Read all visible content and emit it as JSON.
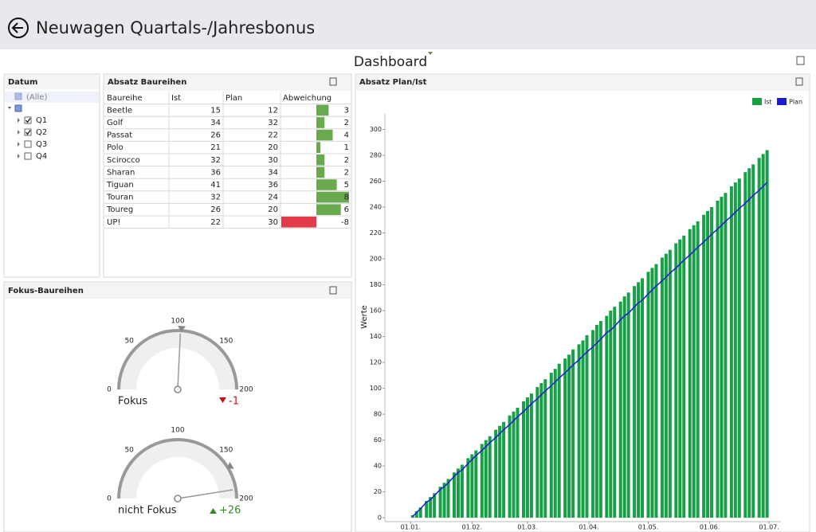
{
  "header": {
    "title": "Neuwagen Quartals-/Jahresbonus"
  },
  "dashboard_title": "Dashboard",
  "datum": {
    "title": "Datum",
    "all": "(Alle)",
    "items": [
      {
        "label": "Q1",
        "checked": true
      },
      {
        "label": "Q2",
        "checked": true
      },
      {
        "label": "Q3",
        "checked": false
      },
      {
        "label": "Q4",
        "checked": false
      }
    ]
  },
  "table": {
    "title": "Absatz Baureihen",
    "header": [
      "Baureihe",
      "Ist",
      "Plan",
      "Abweichung"
    ],
    "rows": [
      [
        "Beetle",
        15,
        12,
        3
      ],
      [
        "Golf",
        34,
        32,
        2
      ],
      [
        "Passat",
        26,
        22,
        4
      ],
      [
        "Polo",
        21,
        20,
        1
      ],
      [
        "Scirocco",
        32,
        30,
        2
      ],
      [
        "Sharan",
        36,
        34,
        2
      ],
      [
        "Tiguan",
        41,
        36,
        5
      ],
      [
        "Touran",
        32,
        24,
        8
      ],
      [
        "Toureg",
        26,
        20,
        6
      ],
      [
        "UP!",
        22,
        30,
        -8
      ]
    ],
    "positive_color": "#6aaa4f",
    "negative_color": "#e23c4b"
  },
  "gauges": {
    "title": "Fokus-Baureihen",
    "scale": {
      "min": 0,
      "max": 200,
      "ticks": [
        0,
        50,
        100,
        150,
        200
      ]
    },
    "items": [
      {
        "label": "Fokus",
        "value": 103,
        "target": 104,
        "delta": "-1"
      },
      {
        "label": "nicht Fokus",
        "value": 190,
        "target": 165,
        "delta": "+26"
      }
    ]
  },
  "chart_data": {
    "type": "bar-line",
    "title": "Absatz Plan/Ist",
    "ylabel": "Werte",
    "x": [
      1,
      3,
      5,
      8,
      10,
      12,
      15,
      17,
      19,
      22,
      24,
      26,
      29,
      31,
      33,
      36,
      38,
      40,
      43,
      45,
      47,
      50,
      52,
      54,
      57,
      59,
      61,
      64,
      66,
      68,
      71,
      73,
      75,
      78,
      80,
      82,
      85,
      87,
      89,
      92,
      94,
      96,
      99,
      101,
      103,
      106,
      108,
      110,
      113,
      115,
      117,
      120,
      122,
      124,
      127,
      129,
      131,
      134,
      136,
      138,
      141,
      143,
      145,
      148,
      150,
      152,
      155,
      157,
      159,
      162,
      164,
      166,
      169,
      171,
      173,
      176,
      178,
      180
    ],
    "series": [
      {
        "name": "Ist",
        "color": "#17a046",
        "values": [
          2,
          5,
          8,
          13,
          16,
          19,
          24,
          27,
          30,
          35,
          38,
          41,
          46,
          49,
          52,
          57,
          60,
          63,
          68,
          71,
          74,
          79,
          82,
          85,
          90,
          93,
          96,
          101,
          104,
          107,
          112,
          115,
          119,
          123,
          126,
          130,
          134,
          137,
          141,
          145,
          149,
          152,
          156,
          160,
          163,
          167,
          171,
          174,
          179,
          182,
          185,
          190,
          193,
          196,
          201,
          204,
          207,
          212,
          215,
          218,
          223,
          226,
          229,
          234,
          237,
          240,
          245,
          248,
          251,
          256,
          259,
          262,
          267,
          270,
          273,
          278,
          281,
          284
        ]
      },
      {
        "name": "Plan",
        "color": "#1b1bd6",
        "values": [
          1,
          4,
          7,
          12,
          14,
          17,
          22,
          24,
          27,
          32,
          35,
          37,
          42,
          45,
          48,
          52,
          55,
          58,
          62,
          65,
          68,
          72,
          75,
          78,
          82,
          85,
          88,
          92,
          95,
          98,
          102,
          105,
          108,
          112,
          115,
          118,
          122,
          125,
          128,
          132,
          135,
          138,
          143,
          145,
          148,
          153,
          156,
          158,
          163,
          166,
          168,
          173,
          176,
          179,
          183,
          186,
          189,
          193,
          196,
          199,
          203,
          206,
          209,
          213,
          216,
          219,
          223,
          226,
          229,
          233,
          236,
          239,
          243,
          246,
          249,
          253,
          256,
          259
        ]
      }
    ],
    "xlim": [
      -13,
      187
    ],
    "xticks": [
      {
        "value": 0,
        "label": "01.01."
      },
      {
        "value": 31,
        "label": "01.02."
      },
      {
        "value": 59,
        "label": "01.03."
      },
      {
        "value": 90,
        "label": "01.04."
      },
      {
        "value": 120,
        "label": "01.05."
      },
      {
        "value": 151,
        "label": "01.06."
      },
      {
        "value": 181,
        "label": "01.07."
      }
    ],
    "ylim": [
      -3,
      312
    ],
    "yticks": [
      0,
      20,
      40,
      60,
      80,
      100,
      120,
      140,
      160,
      180,
      200,
      220,
      240,
      260,
      280,
      300
    ],
    "legend": "top-right"
  }
}
